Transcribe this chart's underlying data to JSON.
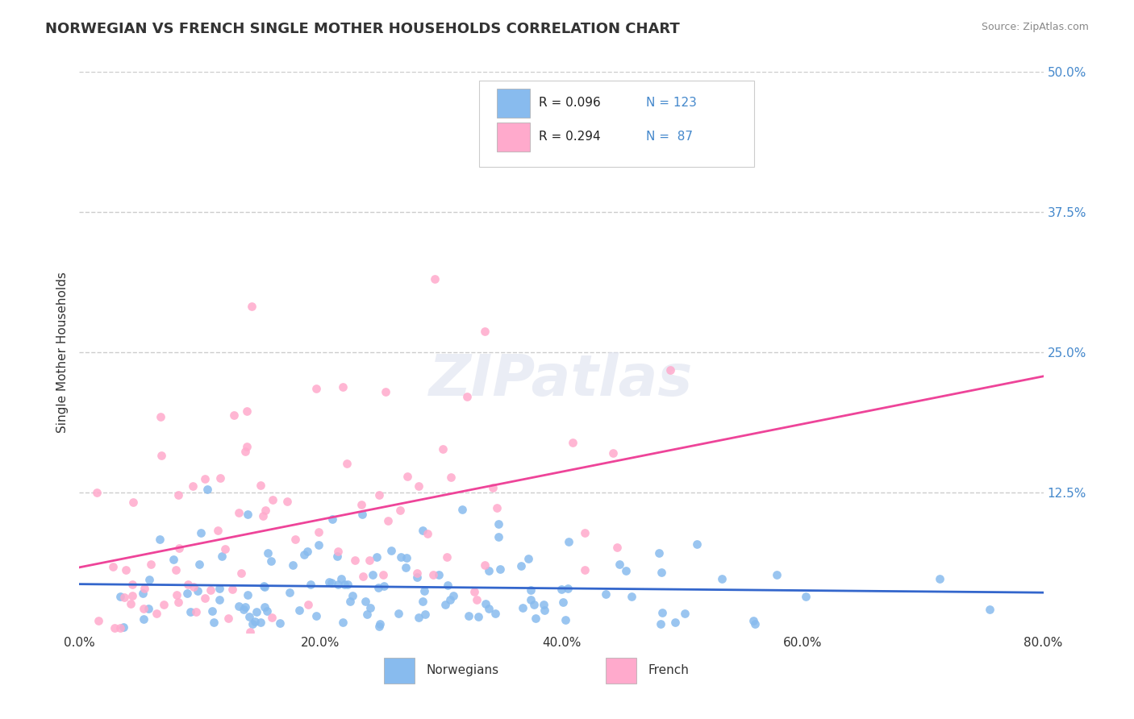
{
  "title": "NORWEGIAN VS FRENCH SINGLE MOTHER HOUSEHOLDS CORRELATION CHART",
  "source": "Source: ZipAtlas.com",
  "ylabel": "Single Mother Households",
  "xlim": [
    0.0,
    0.8
  ],
  "ylim": [
    0.0,
    0.5
  ],
  "xticks": [
    0.0,
    0.2,
    0.4,
    0.6,
    0.8
  ],
  "xticklabels": [
    "0.0%",
    "20.0%",
    "40.0%",
    "60.0%",
    "80.0%"
  ],
  "yticks_right": [
    0.125,
    0.25,
    0.375,
    0.5
  ],
  "yticklabels_right": [
    "12.5%",
    "25.0%",
    "37.5%",
    "50.0%"
  ],
  "grid_color": "#cccccc",
  "background_color": "#ffffff",
  "norwegian_color": "#88bbee",
  "french_color": "#ffaacc",
  "norwegian_line_color": "#3366cc",
  "french_line_color": "#ee4499",
  "R_norwegian": 0.096,
  "N_norwegian": 123,
  "R_french": 0.294,
  "N_french": 87,
  "legend_labels": [
    "Norwegians",
    "French"
  ],
  "watermark": "ZIPatlas",
  "title_fontsize": 13,
  "axis_label_fontsize": 11,
  "tick_fontsize": 11,
  "legend_fontsize": 11
}
